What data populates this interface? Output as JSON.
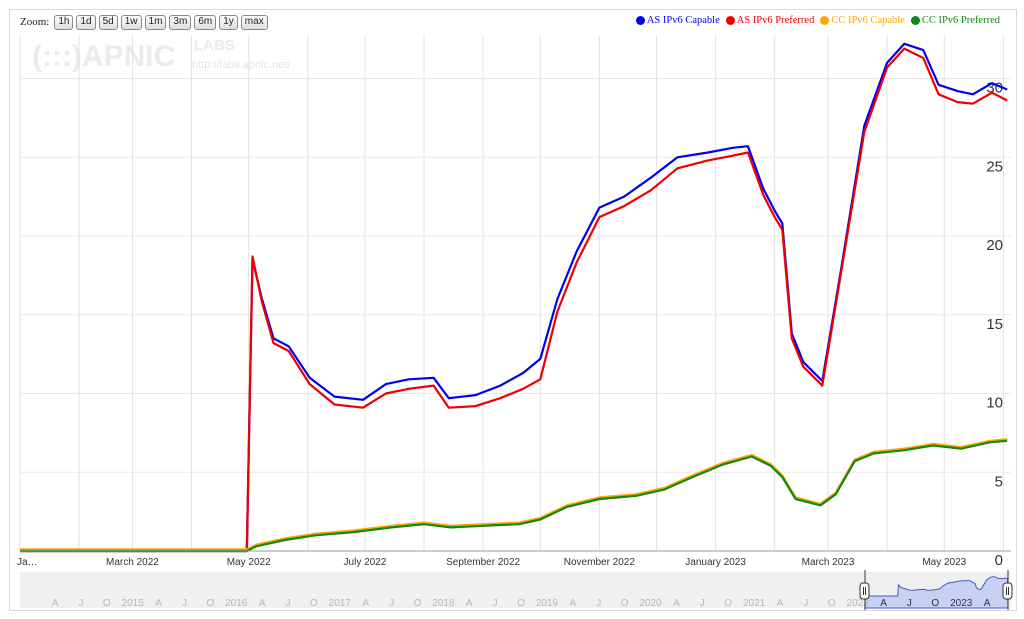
{
  "zoom": {
    "label": "Zoom:",
    "buttons": [
      "1h",
      "1d",
      "5d",
      "1w",
      "1m",
      "3m",
      "6m",
      "1y",
      "max"
    ]
  },
  "watermark": {
    "logo_text": "(:::)APNIC",
    "labs": "LABS",
    "url": "http://labs.apnic.net/"
  },
  "legend": [
    {
      "name": "AS IPv6 Capable",
      "color": "#0000ee"
    },
    {
      "name": "AS IPv6 Preferred",
      "color": "#ee0000"
    },
    {
      "name": "CC IPv6 Capable",
      "color": "#ffa500"
    },
    {
      "name": "CC IPv6 Preferred",
      "color": "#118811"
    }
  ],
  "chart_data": {
    "type": "line",
    "xlabel": "",
    "ylabel": "",
    "x_range": [
      "2022-01-01",
      "2023-06-05"
    ],
    "ylim": [
      0,
      33
    ],
    "y_ticks": [
      0,
      5,
      10,
      15,
      20,
      25,
      30
    ],
    "x_ticks": [
      {
        "date": "2022-01-01",
        "label": "Ja…"
      },
      {
        "date": "2022-03-01",
        "label": "March 2022"
      },
      {
        "date": "2022-05-01",
        "label": "May 2022"
      },
      {
        "date": "2022-07-01",
        "label": "July 2022"
      },
      {
        "date": "2022-09-01",
        "label": "September 2022"
      },
      {
        "date": "2022-11-01",
        "label": "November 2022"
      },
      {
        "date": "2023-01-01",
        "label": "January 2023"
      },
      {
        "date": "2023-03-01",
        "label": "March 2023"
      },
      {
        "date": "2023-05-01",
        "label": "May 2023"
      }
    ],
    "grid": true,
    "legend_position": "top-right",
    "series": [
      {
        "name": "AS IPv6 Capable",
        "color": "#0000ee",
        "points": [
          [
            "2022-01-01",
            0
          ],
          [
            "2022-04-30",
            0
          ],
          [
            "2022-05-03",
            18.5
          ],
          [
            "2022-05-08",
            16
          ],
          [
            "2022-05-14",
            13.5
          ],
          [
            "2022-05-22",
            13
          ],
          [
            "2022-06-02",
            11
          ],
          [
            "2022-06-15",
            9.8
          ],
          [
            "2022-06-30",
            9.6
          ],
          [
            "2022-07-12",
            10.6
          ],
          [
            "2022-07-24",
            10.9
          ],
          [
            "2022-08-06",
            11
          ],
          [
            "2022-08-14",
            9.7
          ],
          [
            "2022-08-28",
            9.9
          ],
          [
            "2022-09-10",
            10.5
          ],
          [
            "2022-09-22",
            11.3
          ],
          [
            "2022-10-01",
            12.2
          ],
          [
            "2022-10-10",
            16
          ],
          [
            "2022-10-20",
            19
          ],
          [
            "2022-11-01",
            21.8
          ],
          [
            "2022-11-14",
            22.5
          ],
          [
            "2022-11-28",
            23.7
          ],
          [
            "2022-12-12",
            25
          ],
          [
            "2022-12-28",
            25.3
          ],
          [
            "2023-01-10",
            25.6
          ],
          [
            "2023-01-18",
            25.7
          ],
          [
            "2023-01-26",
            23
          ],
          [
            "2023-02-01",
            21.6
          ],
          [
            "2023-02-05",
            20.8
          ],
          [
            "2023-02-10",
            13.8
          ],
          [
            "2023-02-16",
            12
          ],
          [
            "2023-02-26",
            10.8
          ],
          [
            "2023-03-08",
            18
          ],
          [
            "2023-03-20",
            27
          ],
          [
            "2023-04-01",
            31
          ],
          [
            "2023-04-10",
            32.2
          ],
          [
            "2023-04-20",
            31.8
          ],
          [
            "2023-04-28",
            29.6
          ],
          [
            "2023-05-08",
            29.2
          ],
          [
            "2023-05-16",
            29
          ],
          [
            "2023-05-26",
            29.7
          ],
          [
            "2023-06-03",
            29.3
          ]
        ]
      },
      {
        "name": "AS IPv6 Preferred",
        "color": "#ee0000",
        "points": [
          [
            "2022-01-01",
            0
          ],
          [
            "2022-04-30",
            0
          ],
          [
            "2022-05-03",
            18.7
          ],
          [
            "2022-05-08",
            15.8
          ],
          [
            "2022-05-14",
            13.2
          ],
          [
            "2022-05-22",
            12.7
          ],
          [
            "2022-06-02",
            10.6
          ],
          [
            "2022-06-15",
            9.3
          ],
          [
            "2022-06-30",
            9.1
          ],
          [
            "2022-07-12",
            10
          ],
          [
            "2022-07-24",
            10.3
          ],
          [
            "2022-08-06",
            10.5
          ],
          [
            "2022-08-14",
            9.1
          ],
          [
            "2022-08-28",
            9.2
          ],
          [
            "2022-09-10",
            9.7
          ],
          [
            "2022-09-22",
            10.3
          ],
          [
            "2022-10-01",
            10.9
          ],
          [
            "2022-10-10",
            15.2
          ],
          [
            "2022-10-20",
            18.3
          ],
          [
            "2022-11-01",
            21.2
          ],
          [
            "2022-11-14",
            21.9
          ],
          [
            "2022-11-28",
            22.9
          ],
          [
            "2022-12-12",
            24.3
          ],
          [
            "2022-12-28",
            24.8
          ],
          [
            "2023-01-10",
            25.1
          ],
          [
            "2023-01-18",
            25.3
          ],
          [
            "2023-01-26",
            22.6
          ],
          [
            "2023-02-01",
            21.2
          ],
          [
            "2023-02-05",
            20.4
          ],
          [
            "2023-02-10",
            13.5
          ],
          [
            "2023-02-16",
            11.7
          ],
          [
            "2023-02-26",
            10.5
          ],
          [
            "2023-03-08",
            17.8
          ],
          [
            "2023-03-20",
            26.6
          ],
          [
            "2023-04-01",
            30.7
          ],
          [
            "2023-04-10",
            31.9
          ],
          [
            "2023-04-20",
            31.3
          ],
          [
            "2023-04-28",
            29
          ],
          [
            "2023-05-08",
            28.5
          ],
          [
            "2023-05-16",
            28.4
          ],
          [
            "2023-05-26",
            29.1
          ],
          [
            "2023-06-03",
            28.6
          ]
        ]
      },
      {
        "name": "CC IPv6 Capable",
        "color": "#ffa500",
        "points": [
          [
            "2022-01-01",
            0.1
          ],
          [
            "2022-04-30",
            0.1
          ],
          [
            "2022-05-05",
            0.4
          ],
          [
            "2022-05-20",
            0.8
          ],
          [
            "2022-06-05",
            1.1
          ],
          [
            "2022-06-25",
            1.3
          ],
          [
            "2022-07-15",
            1.6
          ],
          [
            "2022-08-01",
            1.8
          ],
          [
            "2022-08-15",
            1.6
          ],
          [
            "2022-09-01",
            1.7
          ],
          [
            "2022-09-20",
            1.8
          ],
          [
            "2022-10-01",
            2.1
          ],
          [
            "2022-10-15",
            2.9
          ],
          [
            "2022-11-01",
            3.4
          ],
          [
            "2022-11-20",
            3.6
          ],
          [
            "2022-12-05",
            4
          ],
          [
            "2022-12-20",
            4.8
          ],
          [
            "2023-01-05",
            5.6
          ],
          [
            "2023-01-20",
            6.1
          ],
          [
            "2023-01-30",
            5.5
          ],
          [
            "2023-02-05",
            4.8
          ],
          [
            "2023-02-12",
            3.4
          ],
          [
            "2023-02-25",
            3
          ],
          [
            "2023-03-05",
            3.7
          ],
          [
            "2023-03-15",
            5.8
          ],
          [
            "2023-03-25",
            6.3
          ],
          [
            "2023-04-10",
            6.5
          ],
          [
            "2023-04-25",
            6.8
          ],
          [
            "2023-05-10",
            6.6
          ],
          [
            "2023-05-25",
            7
          ],
          [
            "2023-06-03",
            7.1
          ]
        ]
      },
      {
        "name": "CC IPv6 Preferred",
        "color": "#118811",
        "points": [
          [
            "2022-01-01",
            0
          ],
          [
            "2022-04-30",
            0
          ],
          [
            "2022-05-05",
            0.3
          ],
          [
            "2022-05-20",
            0.7
          ],
          [
            "2022-06-05",
            1
          ],
          [
            "2022-06-25",
            1.2
          ],
          [
            "2022-07-15",
            1.5
          ],
          [
            "2022-08-01",
            1.7
          ],
          [
            "2022-08-15",
            1.5
          ],
          [
            "2022-09-01",
            1.6
          ],
          [
            "2022-09-20",
            1.7
          ],
          [
            "2022-10-01",
            2
          ],
          [
            "2022-10-15",
            2.8
          ],
          [
            "2022-11-01",
            3.3
          ],
          [
            "2022-11-20",
            3.5
          ],
          [
            "2022-12-05",
            3.9
          ],
          [
            "2022-12-20",
            4.7
          ],
          [
            "2023-01-05",
            5.5
          ],
          [
            "2023-01-20",
            6
          ],
          [
            "2023-01-30",
            5.4
          ],
          [
            "2023-02-05",
            4.7
          ],
          [
            "2023-02-12",
            3.3
          ],
          [
            "2023-02-25",
            2.9
          ],
          [
            "2023-03-05",
            3.6
          ],
          [
            "2023-03-15",
            5.7
          ],
          [
            "2023-03-25",
            6.2
          ],
          [
            "2023-04-10",
            6.4
          ],
          [
            "2023-04-25",
            6.7
          ],
          [
            "2023-05-10",
            6.5
          ],
          [
            "2023-05-25",
            6.9
          ],
          [
            "2023-06-03",
            7
          ]
        ]
      }
    ]
  },
  "navigator": {
    "labels": [
      "A",
      "J",
      "O",
      "2015",
      "A",
      "J",
      "O",
      "2016",
      "A",
      "J",
      "O",
      "2017",
      "A",
      "J",
      "O",
      "2018",
      "A",
      "J",
      "O",
      "2019",
      "A",
      "J",
      "O",
      "2020",
      "A",
      "J",
      "O",
      "2021",
      "A",
      "J",
      "O",
      "2022",
      "A",
      "J",
      "O",
      "2023",
      "A"
    ]
  }
}
